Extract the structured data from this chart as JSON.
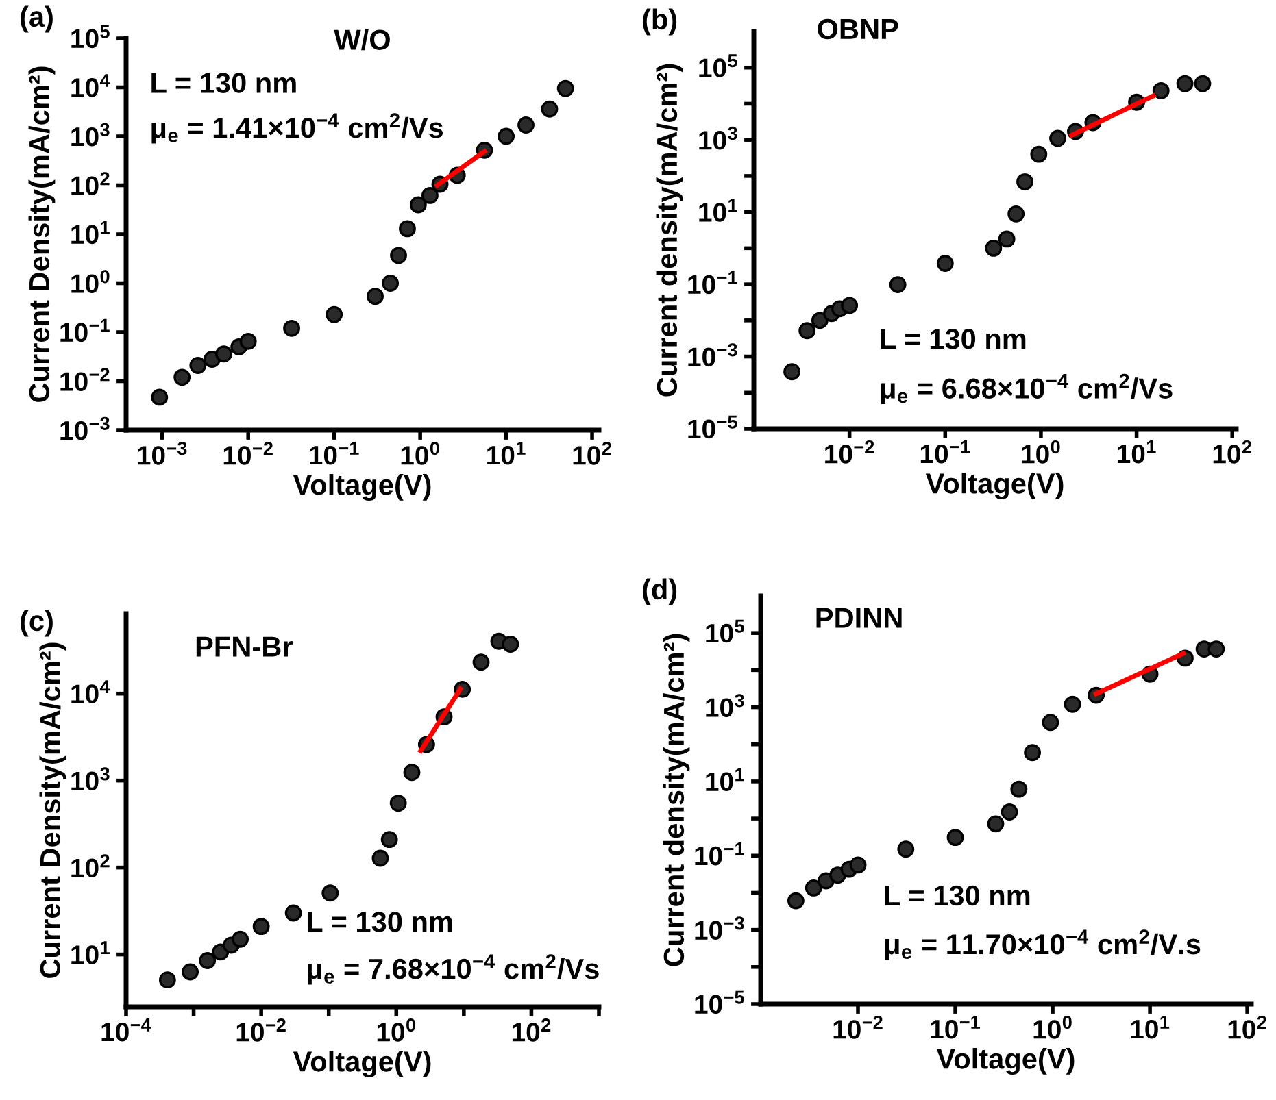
{
  "chart_data": [
    {
      "type": "scatter",
      "title": "W/O",
      "xlabel": "Voltage(V)",
      "ylabel": "Current Density(mA/cm²)",
      "annotations": [
        "(a)",
        "L = 130 nm",
        "μ$_{e}$ = 1.41×10$^{−4}$ cm$^{2}$/Vs"
      ],
      "log": "xy",
      "xlim": [
        0.00038,
        120
      ],
      "ylim": [
        0.001,
        100000
      ],
      "xticks": [
        {
          "value": 0.001,
          "label": "10$^{−3}$"
        },
        {
          "value": 0.01,
          "label": "10$^{−2}$"
        },
        {
          "value": 0.1,
          "label": "10$^{−1}$"
        },
        {
          "value": 1,
          "label": "10$^{0}$"
        },
        {
          "value": 10,
          "label": "10$^{1}$"
        },
        {
          "value": 100,
          "label": "10$^{2}$"
        }
      ],
      "yticks": [
        {
          "value": 0.001,
          "label": "10$^{−3}$"
        },
        {
          "value": 0.01,
          "label": "10$^{−2}$"
        },
        {
          "value": 0.1,
          "label": "10$^{−1}$"
        },
        {
          "value": 1,
          "label": "10$^{0}$"
        },
        {
          "value": 10,
          "label": "10$^{1}$"
        },
        {
          "value": 100,
          "label": "10$^{2}$"
        },
        {
          "value": 1000,
          "label": "10$^{3}$"
        },
        {
          "value": 10000,
          "label": "10$^{4}$"
        },
        {
          "value": 100000,
          "label": "10$^{5}$"
        }
      ],
      "series": [
        {
          "marker": "circle",
          "color": "#2a2a2a",
          "x": [
            0.00093,
            0.0017,
            0.0026,
            0.0038,
            0.0052,
            0.0078,
            0.01,
            0.032,
            0.1,
            0.3,
            0.45,
            0.56,
            0.71,
            0.95,
            1.3,
            1.7,
            2.7,
            5.6,
            10,
            17,
            32,
            49
          ],
          "values": [
            0.0047,
            0.012,
            0.021,
            0.028,
            0.036,
            0.05,
            0.065,
            0.12,
            0.23,
            0.54,
            1.0,
            3.7,
            13,
            40,
            62,
            105,
            160,
            520,
            1000,
            1700,
            3600,
            9500
          ]
        },
        {
          "type": "line",
          "color": "#ff0000",
          "x": [
            1.58,
            5.6
          ],
          "values": [
            100,
            490
          ]
        }
      ]
    },
    {
      "type": "scatter",
      "title": "OBNP",
      "xlabel": "Voltage(V)",
      "ylabel": "Current density(mA/cm²)",
      "annotations": [
        "(b)",
        "L = 130 nm",
        "μ$_{e}$ = 6.68×10$^{−4}$ cm$^{2}$/Vs"
      ],
      "log": "xy",
      "xlim": [
        0.001,
        110
      ],
      "ylim": [
        1e-05,
        1000000
      ],
      "xticks": [
        {
          "value": 0.01,
          "label": "10$^{−2}$"
        },
        {
          "value": 0.1,
          "label": "10$^{−1}$"
        },
        {
          "value": 1,
          "label": "10$^{0}$"
        },
        {
          "value": 10,
          "label": "10$^{1}$"
        },
        {
          "value": 100,
          "label": "10$^{2}$"
        }
      ],
      "yticks": [
        {
          "value": 1e-05,
          "label": "10$^{−5}$"
        },
        {
          "value": 0.0001,
          "label": null
        },
        {
          "value": 0.001,
          "label": "10$^{−3}$"
        },
        {
          "value": 0.01,
          "label": null
        },
        {
          "value": 0.1,
          "label": "10$^{−1}$"
        },
        {
          "value": 1,
          "label": null
        },
        {
          "value": 10,
          "label": "10$^{1}$"
        },
        {
          "value": 100,
          "label": null
        },
        {
          "value": 1000,
          "label": "10$^{3}$"
        },
        {
          "value": 10000,
          "label": null
        },
        {
          "value": 100000,
          "label": "10$^{5}$"
        }
      ],
      "series": [
        {
          "marker": "circle",
          "color": "#2a2a2a",
          "x": [
            0.0025,
            0.0036,
            0.0049,
            0.0065,
            0.0079,
            0.01,
            0.032,
            0.1,
            0.32,
            0.44,
            0.55,
            0.68,
            0.95,
            1.5,
            2.3,
            3.5,
            10,
            18,
            32,
            49
          ],
          "values": [
            0.00038,
            0.0052,
            0.01,
            0.0155,
            0.021,
            0.026,
            0.098,
            0.38,
            1.0,
            1.8,
            8.9,
            69,
            400,
            1100,
            1700,
            3000,
            11000,
            23000,
            36000,
            36000
          ]
        },
        {
          "type": "line",
          "color": "#ff0000",
          "x": [
            2.1,
            15
          ],
          "values": [
            1350,
            16600
          ]
        }
      ]
    },
    {
      "type": "scatter",
      "title": "PFN-Br",
      "xlabel": "Voltage(V)",
      "ylabel": "Current Density(mA/cm²)",
      "annotations": [
        "(c)",
        "L = 130 nm",
        "μ$_{e}$ = 7.68×10$^{−4}$ cm$^{2}$/Vs"
      ],
      "log": "xy",
      "xlim": [
        0.0001,
        1000
      ],
      "ylim": [
        2.5,
        83000
      ],
      "xticks": [
        {
          "value": 0.0001,
          "label": "10$^{−4}$"
        },
        {
          "value": 0.001,
          "label": null
        },
        {
          "value": 0.01,
          "label": "10$^{−2}$"
        },
        {
          "value": 0.1,
          "label": null
        },
        {
          "value": 1,
          "label": "10$^{0}$"
        },
        {
          "value": 10,
          "label": null
        },
        {
          "value": 100,
          "label": "10$^{2}$"
        },
        {
          "value": 1000,
          "label": null
        }
      ],
      "yticks": [
        {
          "value": 10,
          "label": "10$^{1}$"
        },
        {
          "value": 100,
          "label": "10$^{2}$"
        },
        {
          "value": 1000,
          "label": "10$^{3}$"
        },
        {
          "value": 10000,
          "label": "10$^{4}$"
        }
      ],
      "series": [
        {
          "marker": "circle",
          "color": "#2a2a2a",
          "x": [
            0.00041,
            0.00089,
            0.0016,
            0.0025,
            0.0036,
            0.0049,
            0.01,
            0.03,
            0.105,
            0.58,
            0.79,
            1.07,
            1.7,
            2.8,
            5.1,
            9.5,
            18,
            33,
            49
          ],
          "values": [
            5.1,
            6.3,
            8.5,
            10.7,
            12.8,
            15,
            21,
            30,
            51,
            128,
            210,
            550,
            1240,
            2600,
            5400,
            11200,
            23000,
            40000,
            37000
          ]
        },
        {
          "type": "line",
          "color": "#ff0000",
          "x": [
            2.3,
            8.9
          ],
          "values": [
            2200,
            11300
          ]
        }
      ]
    },
    {
      "type": "scatter",
      "title": "PDINN",
      "xlabel": "Voltage(V)",
      "ylabel": "Current density(mA/cm²)",
      "annotations": [
        "(d)",
        "L = 130 nm",
        "μ$_{e}$ = 11.70×10$^{−4}$ cm$^{2}$/V.s"
      ],
      "log": "xy",
      "xlim": [
        0.001,
        110
      ],
      "ylim": [
        1e-05,
        1000000
      ],
      "xticks": [
        {
          "value": 0.01,
          "label": "10$^{−2}$"
        },
        {
          "value": 0.1,
          "label": "10$^{−1}$"
        },
        {
          "value": 1,
          "label": "10$^{0}$"
        },
        {
          "value": 10,
          "label": "10$^{1}$"
        },
        {
          "value": 100,
          "label": "10$^{2}$"
        }
      ],
      "yticks": [
        {
          "value": 1e-05,
          "label": "10$^{−5}$"
        },
        {
          "value": 0.0001,
          "label": null
        },
        {
          "value": 0.001,
          "label": "10$^{−3}$"
        },
        {
          "value": 0.01,
          "label": null
        },
        {
          "value": 0.1,
          "label": "10$^{−1}$"
        },
        {
          "value": 1,
          "label": null
        },
        {
          "value": 10,
          "label": "10$^{1}$"
        },
        {
          "value": 100,
          "label": null
        },
        {
          "value": 1000,
          "label": "10$^{3}$"
        },
        {
          "value": 10000,
          "label": null
        },
        {
          "value": 100000,
          "label": "10$^{5}$"
        }
      ],
      "series": [
        {
          "marker": "circle",
          "color": "#2a2a2a",
          "x": [
            0.0023,
            0.0035,
            0.0047,
            0.0062,
            0.0081,
            0.01,
            0.031,
            0.1,
            0.26,
            0.36,
            0.45,
            0.62,
            0.95,
            1.6,
            2.8,
            10,
            23,
            36,
            48
          ],
          "values": [
            0.0061,
            0.0135,
            0.021,
            0.03,
            0.043,
            0.056,
            0.15,
            0.31,
            0.72,
            1.5,
            6.2,
            60,
            390,
            1200,
            2100,
            7800,
            21000,
            37000,
            37000
          ]
        },
        {
          "type": "line",
          "color": "#ff0000",
          "x": [
            2.8,
            22
          ],
          "values": [
            2300,
            28000
          ]
        }
      ]
    }
  ]
}
